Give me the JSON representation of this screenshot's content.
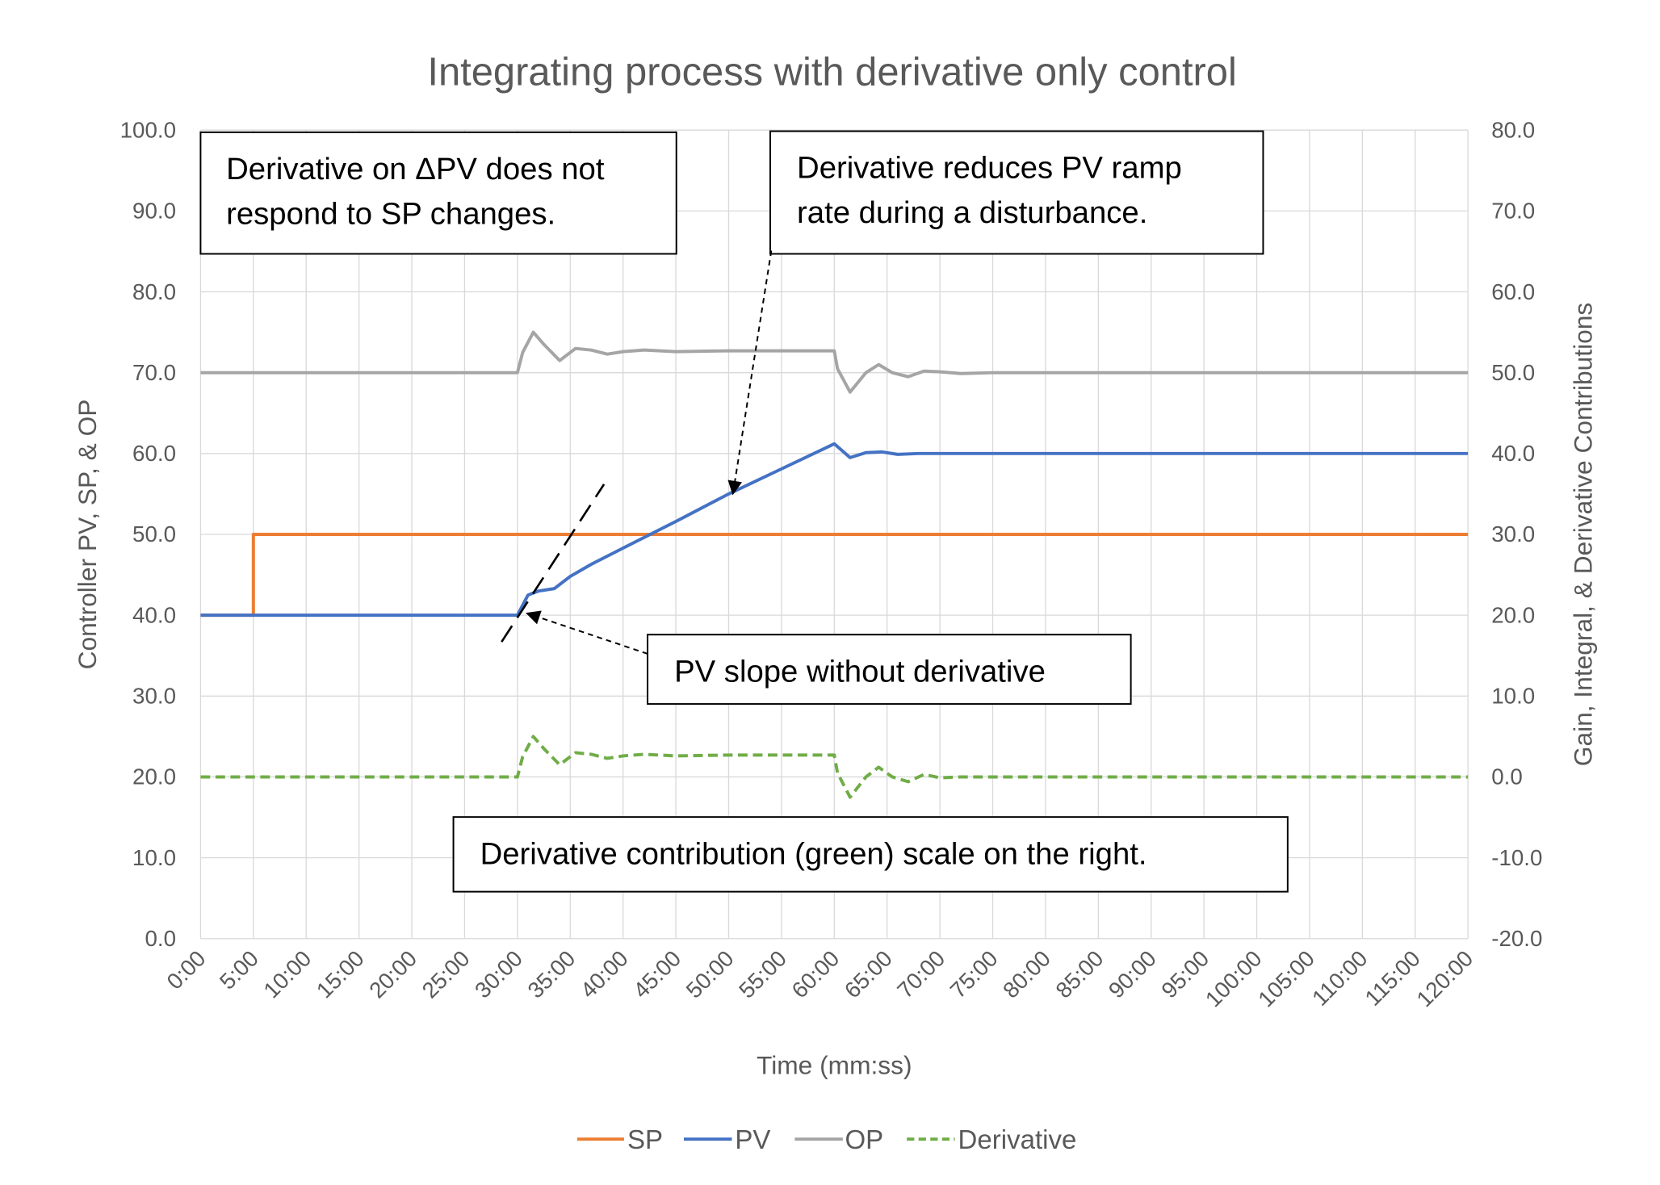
{
  "chart_data": {
    "type": "line",
    "title": "Integrating process with derivative only control",
    "xlabel": "Time (mm:ss)",
    "ylabel": "Controller PV, SP, & OP",
    "y2label": "Gain, Integral, & Derivative Contributions",
    "xlim": [
      0,
      120
    ],
    "ylim": [
      0,
      100
    ],
    "y2lim": [
      -20,
      80
    ],
    "grid": true,
    "legend": "bottom",
    "x_ticks": [
      "0:00",
      "5:00",
      "10:00",
      "15:00",
      "20:00",
      "25:00",
      "30:00",
      "35:00",
      "40:00",
      "45:00",
      "50:00",
      "55:00",
      "60:00",
      "65:00",
      "70:00",
      "75:00",
      "80:00",
      "85:00",
      "90:00",
      "95:00",
      "100:00",
      "105:00",
      "110:00",
      "115:00",
      "120:00"
    ],
    "y_ticks": [
      "0.0",
      "10.0",
      "20.0",
      "30.0",
      "40.0",
      "50.0",
      "60.0",
      "70.0",
      "80.0",
      "90.0",
      "100.0"
    ],
    "y2_ticks": [
      "-20.0",
      "-10.0",
      "0.0",
      "10.0",
      "20.0",
      "30.0",
      "40.0",
      "50.0",
      "60.0",
      "70.0",
      "80.0"
    ],
    "series": [
      {
        "name": "SP",
        "axis": "left",
        "color": "#ED7D31",
        "style": "solid",
        "x": [
          0,
          5,
          5,
          120
        ],
        "y": [
          40,
          40,
          50,
          50
        ]
      },
      {
        "name": "PV",
        "axis": "left",
        "color": "#4472C4",
        "style": "solid",
        "x": [
          0,
          30,
          31,
          32,
          33.5,
          35,
          37,
          40,
          45,
          50,
          55,
          60,
          61.5,
          63,
          64.5,
          66,
          68,
          70,
          120
        ],
        "y": [
          40,
          40,
          42.5,
          43,
          43.3,
          44.8,
          46.3,
          48.3,
          51.6,
          55,
          58.1,
          61.2,
          59.5,
          60.1,
          60.2,
          59.9,
          60,
          60,
          60
        ]
      },
      {
        "name": "OP",
        "axis": "left",
        "color": "#A5A5A5",
        "style": "solid",
        "x": [
          0,
          30,
          30.5,
          31.5,
          32.5,
          34,
          35.5,
          37,
          38.5,
          40,
          42,
          45,
          50,
          60,
          60.3,
          61.5,
          63,
          64.2,
          65.5,
          67,
          68.5,
          70,
          72,
          75,
          80,
          120
        ],
        "y": [
          70,
          70,
          72.5,
          75,
          73.5,
          71.5,
          73,
          72.8,
          72.3,
          72.6,
          72.8,
          72.6,
          72.7,
          72.7,
          70.5,
          67.6,
          70,
          71,
          70,
          69.5,
          70.2,
          70.1,
          69.9,
          70,
          70,
          70
        ]
      },
      {
        "name": "Derivative",
        "axis": "right",
        "color": "#70AD47",
        "style": "dashed",
        "x": [
          0,
          30,
          30.5,
          31.5,
          32.5,
          34,
          35.5,
          37,
          38.5,
          40,
          42,
          45,
          50,
          60,
          60.3,
          61.5,
          63,
          64.2,
          65.5,
          67,
          68.5,
          70,
          72,
          75,
          120
        ],
        "y": [
          0,
          0,
          2.5,
          5,
          3.5,
          1.5,
          3,
          2.8,
          2.3,
          2.6,
          2.8,
          2.6,
          2.7,
          2.7,
          0.5,
          -2.5,
          0,
          1.2,
          0,
          -0.6,
          0.3,
          -0.1,
          0,
          0,
          0
        ]
      }
    ],
    "annotations": [
      {
        "text_lines": [
          "Derivative on ΔPV does not",
          "respond to SP changes."
        ]
      },
      {
        "text_lines": [
          "Derivative reduces PV ramp",
          "rate during a disturbance."
        ],
        "points_to": {
          "x": 50,
          "y": 55
        }
      },
      {
        "text_lines": [
          "PV slope without derivative"
        ],
        "points_to": {
          "x": 30.5,
          "y": 40.5
        }
      },
      {
        "text_lines": [
          "Derivative contribution (green) scale on the right."
        ]
      }
    ],
    "reference_line": {
      "style": "dashed",
      "color": "#000000",
      "from": {
        "x": 28.5,
        "y": 36.7
      },
      "to": {
        "x": 38.2,
        "y": 56.2
      }
    }
  }
}
